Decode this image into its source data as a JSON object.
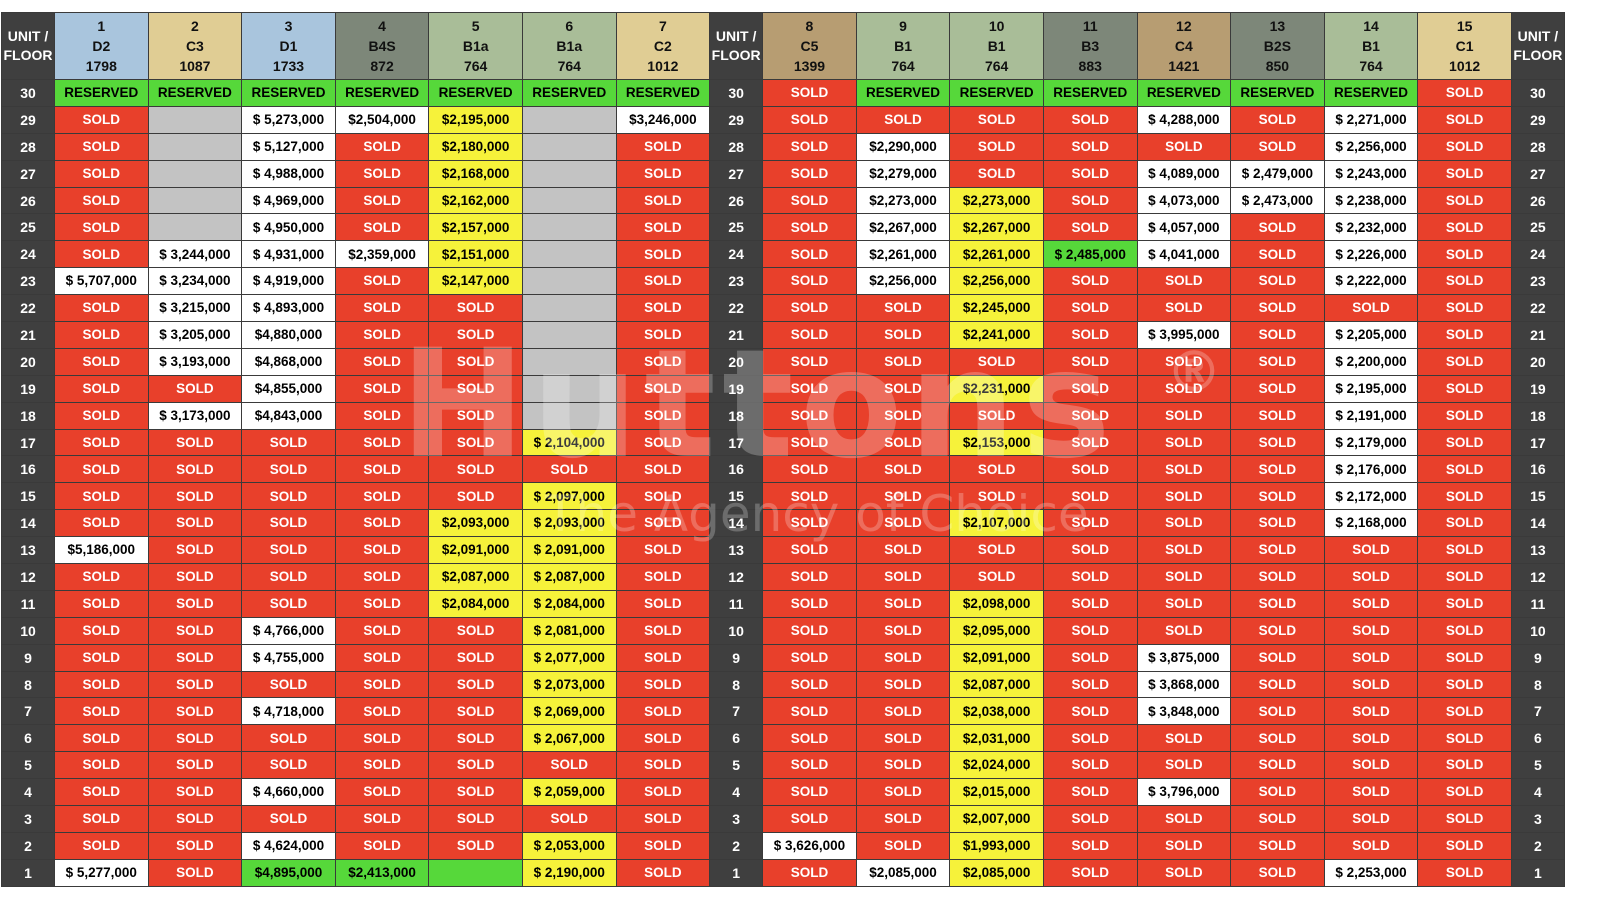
{
  "header": {
    "floor_label_line1": "UNIT /",
    "floor_label_line2": "FLOOR",
    "units": [
      {
        "no": "1",
        "type": "D2",
        "size": "1798",
        "color": "#a9c5dd"
      },
      {
        "no": "2",
        "type": "C3",
        "size": "1087",
        "color": "#e0cd94"
      },
      {
        "no": "3",
        "type": "D1",
        "size": "1733",
        "color": "#a9c5dd"
      },
      {
        "no": "4",
        "type": "B4S",
        "size": "872",
        "color": "#7d8779"
      },
      {
        "no": "5",
        "type": "B1a",
        "size": "764",
        "color": "#a9bd98"
      },
      {
        "no": "6",
        "type": "B1a",
        "size": "764",
        "color": "#a9bd98"
      },
      {
        "no": "7",
        "type": "C2",
        "size": "1012",
        "color": "#e0cd94"
      },
      {
        "no": "8",
        "type": "C5",
        "size": "1399",
        "color": "#b79d72"
      },
      {
        "no": "9",
        "type": "B1",
        "size": "764",
        "color": "#a9bd98"
      },
      {
        "no": "10",
        "type": "B1",
        "size": "764",
        "color": "#a9bd98"
      },
      {
        "no": "11",
        "type": "B3",
        "size": "883",
        "color": "#7d8779"
      },
      {
        "no": "12",
        "type": "C4",
        "size": "1421",
        "color": "#b79d72"
      },
      {
        "no": "13",
        "type": "B2S",
        "size": "850",
        "color": "#7d8779"
      },
      {
        "no": "14",
        "type": "B1",
        "size": "764",
        "color": "#a9bd98"
      },
      {
        "no": "15",
        "type": "C1",
        "size": "1012",
        "color": "#e0cd94"
      }
    ]
  },
  "status_labels": {
    "S": "SOLD",
    "R": "RESERVED"
  },
  "watermark": {
    "brand": "Huttons",
    "reg": "®",
    "tagline": "The Agency of Choice"
  },
  "rows": [
    {
      "floor": "30",
      "cells": [
        "R",
        "R",
        "R",
        "R",
        "R",
        "R",
        "R",
        "S",
        "R",
        "R",
        "R",
        "R",
        "R",
        "R",
        "S"
      ]
    },
    {
      "floor": "29",
      "cells": [
        "S",
        "X",
        "W:$ 5,273,000",
        "W:$2,504,000",
        "Y:$2,195,000",
        "X",
        "W:$3,246,000",
        "S",
        "S",
        "S",
        "S",
        "W:$ 4,288,000",
        "S",
        "W:$ 2,271,000",
        "S"
      ]
    },
    {
      "floor": "28",
      "cells": [
        "S",
        "X",
        "W:$ 5,127,000",
        "S",
        "Y:$2,180,000",
        "X",
        "S",
        "S",
        "W:$2,290,000",
        "S",
        "S",
        "S",
        "S",
        "W:$ 2,256,000",
        "S"
      ]
    },
    {
      "floor": "27",
      "cells": [
        "S",
        "X",
        "W:$ 4,988,000",
        "S",
        "Y:$2,168,000",
        "X",
        "S",
        "S",
        "W:$2,279,000",
        "S",
        "S",
        "W:$ 4,089,000",
        "W:$ 2,479,000",
        "W:$ 2,243,000",
        "S"
      ]
    },
    {
      "floor": "26",
      "cells": [
        "S",
        "X",
        "W:$ 4,969,000",
        "S",
        "Y:$2,162,000",
        "X",
        "S",
        "S",
        "W:$2,273,000",
        "Y:$2,273,000",
        "S",
        "W:$ 4,073,000",
        "W:$ 2,473,000",
        "W:$ 2,238,000",
        "S"
      ]
    },
    {
      "floor": "25",
      "cells": [
        "S",
        "X",
        "W:$ 4,950,000",
        "S",
        "Y:$2,157,000",
        "X",
        "S",
        "S",
        "W:$2,267,000",
        "Y:$2,267,000",
        "S",
        "W:$ 4,057,000",
        "S",
        "W:$ 2,232,000",
        "S"
      ]
    },
    {
      "floor": "24",
      "cells": [
        "S",
        "W:$ 3,244,000",
        "W:$ 4,931,000",
        "W:$2,359,000",
        "Y:$2,151,000",
        "X",
        "S",
        "S",
        "W:$2,261,000",
        "Y:$2,261,000",
        "G:$ 2,485,000",
        "W:$ 4,041,000",
        "S",
        "W:$ 2,226,000",
        "S"
      ]
    },
    {
      "floor": "23",
      "cells": [
        "W:$ 5,707,000",
        "W:$ 3,234,000",
        "W:$ 4,919,000",
        "S",
        "Y:$2,147,000",
        "X",
        "S",
        "S",
        "W:$2,256,000",
        "Y:$2,256,000",
        "S",
        "S",
        "S",
        "W:$ 2,222,000",
        "S"
      ]
    },
    {
      "floor": "22",
      "cells": [
        "S",
        "W:$ 3,215,000",
        "W:$ 4,893,000",
        "S",
        "S",
        "X",
        "S",
        "S",
        "S",
        "Y:$2,245,000",
        "S",
        "S",
        "S",
        "S",
        "S"
      ]
    },
    {
      "floor": "21",
      "cells": [
        "S",
        "W:$ 3,205,000",
        "W:$4,880,000",
        "S",
        "S",
        "X",
        "S",
        "S",
        "S",
        "Y:$2,241,000",
        "S",
        "W:$ 3,995,000",
        "S",
        "W:$ 2,205,000",
        "S"
      ]
    },
    {
      "floor": "20",
      "cells": [
        "S",
        "W:$ 3,193,000",
        "W:$4,868,000",
        "S",
        "S",
        "X",
        "S",
        "S",
        "S",
        "S",
        "S",
        "S",
        "S",
        "W:$ 2,200,000",
        "S"
      ]
    },
    {
      "floor": "19",
      "cells": [
        "S",
        "S",
        "W:$4,855,000",
        "S",
        "S",
        "X",
        "S",
        "S",
        "S",
        "Y:$2,231,000",
        "S",
        "S",
        "S",
        "W:$ 2,195,000",
        "S"
      ]
    },
    {
      "floor": "18",
      "cells": [
        "S",
        "W:$ 3,173,000",
        "W:$4,843,000",
        "S",
        "S",
        "X",
        "S",
        "S",
        "S",
        "S",
        "S",
        "S",
        "S",
        "W:$ 2,191,000",
        "S"
      ]
    },
    {
      "floor": "17",
      "cells": [
        "S",
        "S",
        "S",
        "S",
        "S",
        "Y:$ 2,104,000",
        "S",
        "S",
        "S",
        "Y:$2,153,000",
        "S",
        "S",
        "S",
        "W:$ 2,179,000",
        "S"
      ]
    },
    {
      "floor": "16",
      "cells": [
        "S",
        "S",
        "S",
        "S",
        "S",
        "S",
        "S",
        "S",
        "S",
        "S",
        "S",
        "S",
        "S",
        "W:$ 2,176,000",
        "S"
      ]
    },
    {
      "floor": "15",
      "cells": [
        "S",
        "S",
        "S",
        "S",
        "S",
        "Y:$ 2,097,000",
        "S",
        "S",
        "S",
        "S",
        "S",
        "S",
        "S",
        "W:$ 2,172,000",
        "S"
      ]
    },
    {
      "floor": "14",
      "cells": [
        "S",
        "S",
        "S",
        "S",
        "Y:$2,093,000",
        "Y:$ 2,093,000",
        "S",
        "S",
        "S",
        "Y:$2,107,000",
        "S",
        "S",
        "S",
        "W:$ 2,168,000",
        "S"
      ]
    },
    {
      "floor": "13",
      "cells": [
        "W:$5,186,000",
        "S",
        "S",
        "S",
        "Y:$2,091,000",
        "Y:$ 2,091,000",
        "S",
        "S",
        "S",
        "S",
        "S",
        "S",
        "S",
        "S",
        "S"
      ]
    },
    {
      "floor": "12",
      "cells": [
        "S",
        "S",
        "S",
        "S",
        "Y:$2,087,000",
        "Y:$ 2,087,000",
        "S",
        "S",
        "S",
        "S",
        "S",
        "S",
        "S",
        "S",
        "S"
      ]
    },
    {
      "floor": "11",
      "cells": [
        "S",
        "S",
        "S",
        "S",
        "Y:$2,084,000",
        "Y:$ 2,084,000",
        "S",
        "S",
        "S",
        "Y:$2,098,000",
        "S",
        "S",
        "S",
        "S",
        "S"
      ]
    },
    {
      "floor": "10",
      "cells": [
        "S",
        "S",
        "W:$ 4,766,000",
        "S",
        "S",
        "Y:$ 2,081,000",
        "S",
        "S",
        "S",
        "Y:$2,095,000",
        "S",
        "S",
        "S",
        "S",
        "S"
      ]
    },
    {
      "floor": "9",
      "cells": [
        "S",
        "S",
        "W:$ 4,755,000",
        "S",
        "S",
        "Y:$ 2,077,000",
        "S",
        "S",
        "S",
        "Y:$2,091,000",
        "S",
        "W:$ 3,875,000",
        "S",
        "S",
        "S"
      ]
    },
    {
      "floor": "8",
      "cells": [
        "S",
        "S",
        "S",
        "S",
        "S",
        "Y:$ 2,073,000",
        "S",
        "S",
        "S",
        "Y:$2,087,000",
        "S",
        "W:$ 3,868,000",
        "S",
        "S",
        "S"
      ]
    },
    {
      "floor": "7",
      "cells": [
        "S",
        "S",
        "W:$ 4,718,000",
        "S",
        "S",
        "Y:$ 2,069,000",
        "S",
        "S",
        "S",
        "Y:$2,038,000",
        "S",
        "W:$ 3,848,000",
        "S",
        "S",
        "S"
      ]
    },
    {
      "floor": "6",
      "cells": [
        "S",
        "S",
        "S",
        "S",
        "S",
        "Y:$ 2,067,000",
        "S",
        "S",
        "S",
        "Y:$2,031,000",
        "S",
        "S",
        "S",
        "S",
        "S"
      ]
    },
    {
      "floor": "5",
      "cells": [
        "S",
        "S",
        "S",
        "S",
        "S",
        "S",
        "S",
        "S",
        "S",
        "Y:$2,024,000",
        "S",
        "S",
        "S",
        "S",
        "S"
      ]
    },
    {
      "floor": "4",
      "cells": [
        "S",
        "S",
        "W:$ 4,660,000",
        "S",
        "S",
        "Y:$ 2,059,000",
        "S",
        "S",
        "S",
        "Y:$2,015,000",
        "S",
        "W:$ 3,796,000",
        "S",
        "S",
        "S"
      ]
    },
    {
      "floor": "3",
      "cells": [
        "S",
        "S",
        "S",
        "S",
        "S",
        "S",
        "S",
        "S",
        "S",
        "Y:$2,007,000",
        "S",
        "S",
        "S",
        "S",
        "S"
      ]
    },
    {
      "floor": "2",
      "cells": [
        "S",
        "S",
        "W:$ 4,624,000",
        "S",
        "S",
        "Y:$ 2,053,000",
        "S",
        "W:$ 3,626,000",
        "S",
        "Y:$1,993,000",
        "S",
        "S",
        "S",
        "S",
        "S"
      ]
    },
    {
      "floor": "1",
      "cells": [
        "W:$ 5,277,000",
        "S",
        "G:$4,895,000",
        "G:$2,413,000",
        "G",
        "Y:$ 2,190,000",
        "S",
        "S",
        "W:$2,085,000",
        "Y:$2,085,000",
        "S",
        "S",
        "S",
        "W:$ 2,253,000",
        "S"
      ]
    }
  ]
}
